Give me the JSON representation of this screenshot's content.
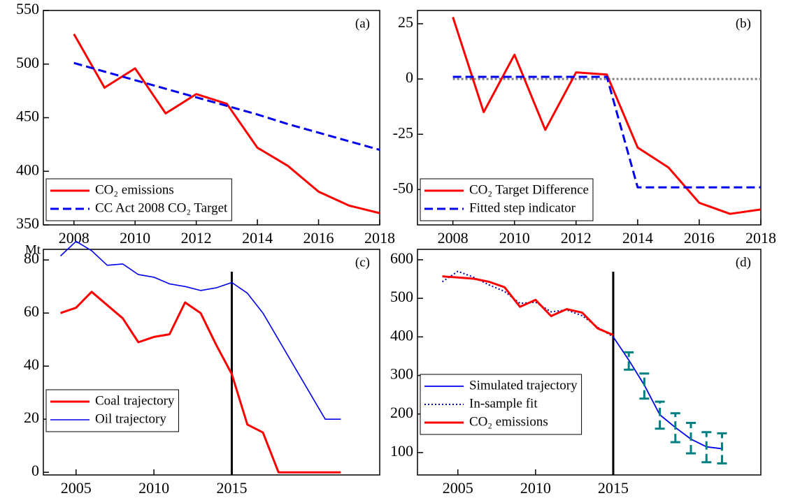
{
  "chart_data": [
    {
      "type": "line",
      "label": "(a)",
      "x": [
        2008,
        2009,
        2010,
        2011,
        2012,
        2013,
        2014,
        2015,
        2016,
        2017,
        2018
      ],
      "xlim": [
        2007,
        2018
      ],
      "xticks": [
        2008,
        2010,
        2012,
        2014,
        2016,
        2018
      ],
      "ylim": [
        350,
        550
      ],
      "yticks": [
        350,
        400,
        450,
        500,
        550
      ],
      "legend": "lower left",
      "series": [
        {
          "name": "CO₂ emissions",
          "color": "#ff0000",
          "linewidth": 3,
          "values": [
            528,
            478,
            496,
            454,
            472,
            463,
            422,
            405,
            381,
            368,
            361
          ]
        },
        {
          "name": "CC Act 2008 CO₂ Target",
          "color": "#0000ee",
          "linewidth": 3,
          "dash": "dashed",
          "values": [
            501,
            493,
            485,
            477,
            469,
            461,
            453,
            444,
            436,
            428,
            420
          ]
        }
      ]
    },
    {
      "type": "line",
      "label": "(b)",
      "x": [
        2008,
        2009,
        2010,
        2011,
        2012,
        2013,
        2014,
        2015,
        2016,
        2017,
        2018
      ],
      "xlim": [
        2006.85,
        2018
      ],
      "xticks": [
        2008,
        2010,
        2012,
        2014,
        2016,
        2018
      ],
      "ylim": [
        -66,
        31
      ],
      "yticks": [
        -50,
        -25,
        0,
        25
      ],
      "legend": "lower left",
      "hline": 0,
      "hline_color": "#808080",
      "series": [
        {
          "name": "CO₂ Target Difference",
          "color": "#ff0000",
          "linewidth": 3,
          "values": [
            28,
            -15,
            11,
            -23,
            3,
            2,
            -31,
            -40,
            -56,
            -61,
            -59
          ]
        },
        {
          "name": "Fitted step indicator",
          "color": "#0000ee",
          "linewidth": 3,
          "dash": "dashed",
          "values": [
            1,
            1,
            1,
            1,
            1,
            1,
            -49,
            -49,
            -49,
            -49,
            -49
          ]
        }
      ]
    },
    {
      "type": "line",
      "label": "(c)",
      "ylabel": "Mt",
      "x": [
        2004,
        2005,
        2006,
        2007,
        2008,
        2009,
        2010,
        2011,
        2012,
        2013,
        2014,
        2015,
        2016,
        2017,
        2018,
        2019,
        2020,
        2021,
        2022
      ],
      "xlim": [
        2002.9,
        2024.5
      ],
      "xticks": [
        2005,
        2010,
        2015
      ],
      "ylim": [
        -1,
        84
      ],
      "yticks": [
        0,
        20,
        40,
        60,
        80
      ],
      "legend": "lower left",
      "vline": 2015,
      "vline_color": "#000000",
      "series": [
        {
          "name": "Coal trajectory",
          "color": "#ff0000",
          "linewidth": 3,
          "values": [
            60,
            62,
            68,
            63,
            58,
            49,
            51,
            52,
            64,
            60,
            48,
            37,
            18,
            15,
            0,
            0,
            0,
            0,
            0
          ]
        },
        {
          "name": "Oil trajectory",
          "color": "#0000ee",
          "linewidth": 1.6,
          "values": [
            81.5,
            87,
            83.5,
            78,
            78.5,
            74.5,
            73.5,
            71,
            70,
            68.5,
            69.5,
            71.5,
            67.5,
            60,
            50,
            40,
            30,
            20,
            20
          ]
        }
      ]
    },
    {
      "type": "line",
      "label": "(d)",
      "xlim": [
        2002.4,
        2024.5
      ],
      "xticks": [
        2005,
        2010,
        2015
      ],
      "ylim": [
        42,
        627
      ],
      "yticks": [
        100,
        200,
        300,
        400,
        500,
        600
      ],
      "legend": "lower left",
      "vline": 2015,
      "vline_color": "#000000",
      "series": [
        {
          "name": "Simulated trajectory",
          "color": "#0000ee",
          "linewidth": 1.8,
          "x": [
            2015,
            2016,
            2017,
            2018,
            2019,
            2020,
            2021,
            2022
          ],
          "values": [
            400,
            340,
            275,
            198,
            165,
            135,
            115,
            110
          ]
        },
        {
          "name": "In-sample fit",
          "color": "#0000aa",
          "linewidth": 2,
          "dash": "dotted",
          "x": [
            2004,
            2005,
            2006,
            2007,
            2008,
            2009,
            2010,
            2011,
            2012,
            2013,
            2014,
            2015
          ],
          "values": [
            543,
            570,
            555,
            535,
            518,
            487,
            490,
            465,
            470,
            455,
            425,
            400
          ]
        },
        {
          "name": "CO₂ emissions",
          "color": "#ff0000",
          "linewidth": 3,
          "x": [
            2004,
            2005,
            2006,
            2007,
            2008,
            2009,
            2010,
            2011,
            2012,
            2013,
            2014,
            2015
          ],
          "values": [
            557,
            554,
            551,
            543,
            529,
            478,
            496,
            454,
            472,
            463,
            422,
            405
          ]
        },
        {
          "kind": "errorbar",
          "color": "#008080",
          "linewidth": 3,
          "dash": "dashed",
          "x": [
            2016,
            2017,
            2018,
            2019,
            2020,
            2021,
            2022
          ],
          "low": [
            315,
            240,
            162,
            127,
            98,
            75,
            72
          ],
          "high": [
            360,
            305,
            232,
            202,
            177,
            153,
            150
          ]
        }
      ]
    }
  ]
}
